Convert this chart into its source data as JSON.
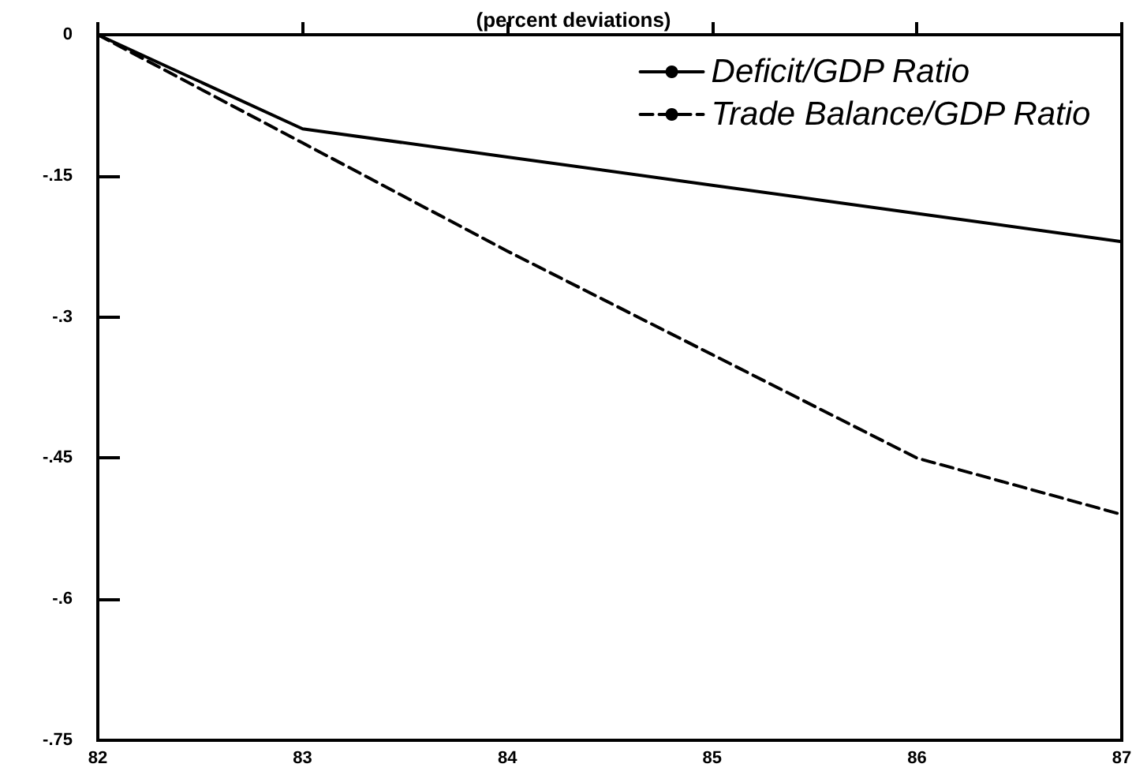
{
  "chart_data": {
    "type": "line",
    "subtitle": "(percent deviations)",
    "x": [
      82,
      83,
      84,
      85,
      86,
      87
    ],
    "xlim": [
      82,
      87
    ],
    "xticks": [
      82,
      83,
      84,
      85,
      86,
      87
    ],
    "ylim": [
      -0.75,
      0
    ],
    "yticks": [
      {
        "value": 0,
        "label": "0"
      },
      {
        "value": -0.15,
        "label": "-.15"
      },
      {
        "value": -0.3,
        "label": "-.3"
      },
      {
        "value": -0.45,
        "label": "-.45"
      },
      {
        "value": -0.6,
        "label": "-.6"
      },
      {
        "value": -0.75,
        "label": "-.75"
      }
    ],
    "series": [
      {
        "name": "Deficit/GDP Ratio",
        "color": "#000000",
        "line_style": "solid",
        "values": [
          0,
          -0.1,
          -0.13,
          -0.16,
          -0.19,
          -0.22
        ]
      },
      {
        "name": "Trade Balance/GDP Ratio",
        "color": "#000000",
        "line_style": "dashed",
        "values": [
          0,
          -0.115,
          -0.23,
          -0.34,
          -0.45,
          -0.51
        ]
      }
    ],
    "legend": "top right",
    "grid": false,
    "marker": "none"
  }
}
